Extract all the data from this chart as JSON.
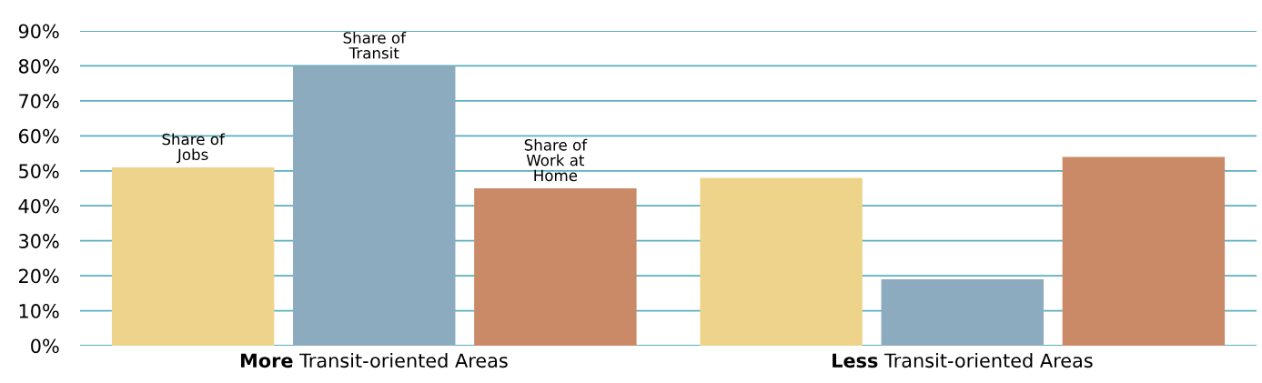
{
  "chart_data": {
    "type": "bar",
    "categories": [
      "More Transit-oriented Areas",
      "Less Transit-oriented Areas"
    ],
    "series": [
      {
        "name": "Share of\nJobs",
        "color": "#eed48b",
        "values": [
          51,
          48
        ]
      },
      {
        "name": "Share of\nTransit",
        "color": "#8cabbe",
        "values": [
          80,
          19
        ]
      },
      {
        "name": "Share of\nWork at\nHome",
        "color": "#cb8a67",
        "values": [
          45,
          54
        ]
      }
    ],
    "ylim": [
      0,
      90
    ],
    "yticks": [
      {
        "value": 0,
        "label": "0%"
      },
      {
        "value": 10,
        "label": "10%"
      },
      {
        "value": 20,
        "label": "20%"
      },
      {
        "value": 30,
        "label": "30%"
      },
      {
        "value": 40,
        "label": "40%"
      },
      {
        "value": 50,
        "label": "50%"
      },
      {
        "value": 60,
        "label": "60%"
      },
      {
        "value": 70,
        "label": "70%"
      },
      {
        "value": 80,
        "label": "80%"
      },
      {
        "value": 90,
        "label": "90%"
      }
    ],
    "grid": "y"
  }
}
